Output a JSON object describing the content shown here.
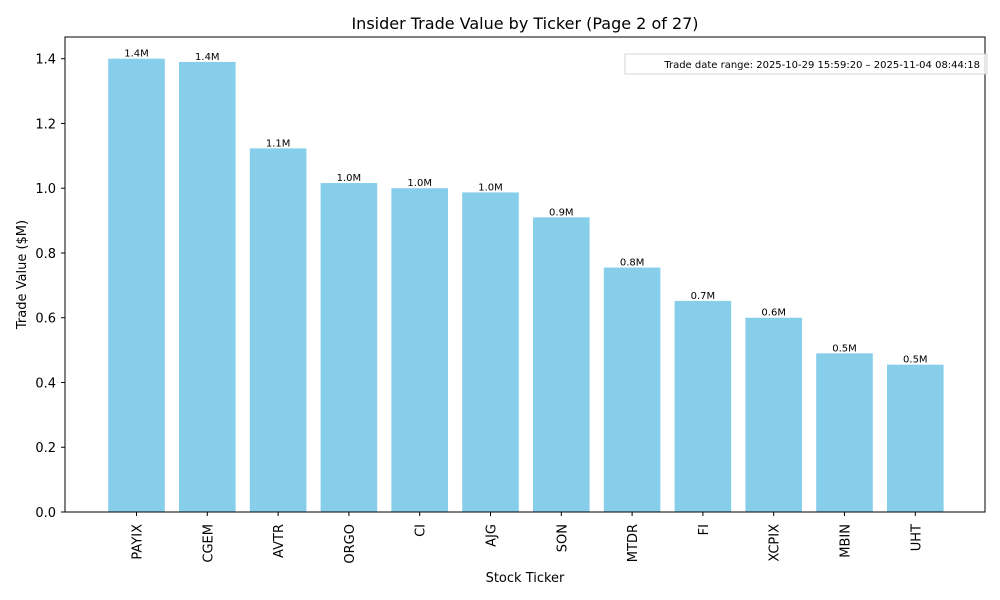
{
  "chart_data": {
    "type": "bar",
    "title": "Insider Trade Value by Ticker (Page 2 of 27)",
    "xlabel": "Stock Ticker",
    "ylabel": "Trade Value ($M)",
    "ylim": [
      0,
      1.467
    ],
    "yticks": [
      0.0,
      0.2,
      0.4,
      0.6,
      0.8,
      1.0,
      1.2,
      1.4
    ],
    "ytick_labels": [
      "0.0",
      "0.2",
      "0.4",
      "0.6",
      "0.8",
      "1.0",
      "1.2",
      "1.4"
    ],
    "categories": [
      "PAYIX",
      "CGEM",
      "AVTR",
      "ORGO",
      "CI",
      "AJG",
      "SON",
      "MTDR",
      "FI",
      "XCPIX",
      "MBIN",
      "UHT"
    ],
    "values": [
      1.4,
      1.39,
      1.123,
      1.016,
      1.0,
      0.987,
      0.91,
      0.755,
      0.652,
      0.6,
      0.49,
      0.455
    ],
    "data_labels": [
      "1.4M",
      "1.4M",
      "1.1M",
      "1.0M",
      "1.0M",
      "1.0M",
      "0.9M",
      "0.8M",
      "0.7M",
      "0.6M",
      "0.5M",
      "0.5M"
    ],
    "bar_color": "#87ceeb",
    "annotation": "Trade date range: 2025-10-29 15:59:20 – 2025-11-04 08:44:18",
    "grid": false
  }
}
